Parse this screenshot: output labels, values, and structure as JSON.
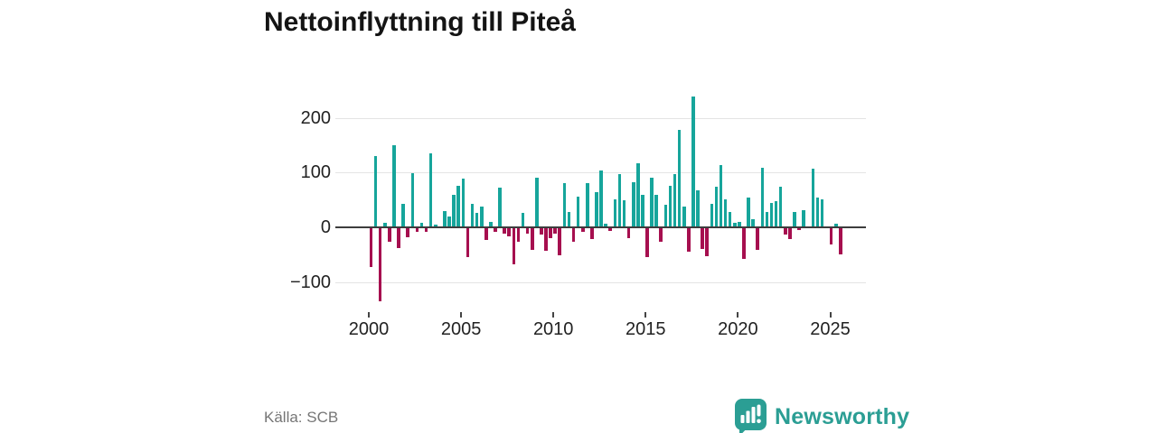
{
  "title": "Nettoinflyttning till Piteå",
  "source": "Källa: SCB",
  "branding": {
    "name": "Newsworthy",
    "logo_icon": "bar-chart-speech-bubble"
  },
  "colors": {
    "positive": "#16a59b",
    "negative": "#a60f4f",
    "brand": "#2b9e94",
    "grid": "#e4e4e4",
    "zero_line": "#3d3d3d",
    "axis_text": "#222222",
    "title_text": "#141414",
    "source_text": "#767676",
    "background": "#ffffff"
  },
  "chart_data": {
    "type": "bar",
    "title": "Nettoinflyttning till Piteå",
    "frequency": "quarterly",
    "start_year": 2000,
    "start_quarter": 1,
    "values": [
      -71,
      128,
      -134,
      7,
      -25,
      149,
      -37,
      42,
      -16,
      97,
      -7,
      7,
      -7,
      134,
      4,
      0,
      28,
      19,
      58,
      75,
      88,
      -52,
      42,
      24,
      37,
      -21,
      9,
      -7,
      71,
      -9,
      -14,
      -66,
      -25,
      25,
      -9,
      -40,
      89,
      -11,
      -41,
      -18,
      -9,
      -50,
      80,
      26,
      -24,
      55,
      -7,
      79,
      -20,
      63,
      102,
      5,
      -5,
      49,
      95,
      48,
      -18,
      81,
      116,
      57,
      -52,
      89,
      57,
      -24,
      40,
      75,
      95,
      177,
      36,
      -43,
      237,
      66,
      -38,
      -51,
      41,
      72,
      112,
      49,
      27,
      7,
      8,
      -56,
      53,
      13,
      -40,
      107,
      26,
      43,
      47,
      72,
      -11,
      -20,
      26,
      -3,
      30,
      0,
      106,
      53,
      50,
      0,
      -30,
      5,
      -47
    ],
    "y_ticks": [
      {
        "label": "200",
        "value": 200
      },
      {
        "label": "100",
        "value": 100
      },
      {
        "label": "0",
        "value": 0
      },
      {
        "label": "−100",
        "value": -100
      }
    ],
    "x_ticks": [
      {
        "label": "2000",
        "year": 2000
      },
      {
        "label": "2005",
        "year": 2005
      },
      {
        "label": "2010",
        "year": 2010
      },
      {
        "label": "2015",
        "year": 2015
      },
      {
        "label": "2020",
        "year": 2020
      },
      {
        "label": "2025",
        "year": 2025
      }
    ],
    "ylim": [
      -150,
      300
    ],
    "grid": true,
    "legend": false,
    "positive_color": "#16a59b",
    "negative_color": "#a60f4f"
  }
}
